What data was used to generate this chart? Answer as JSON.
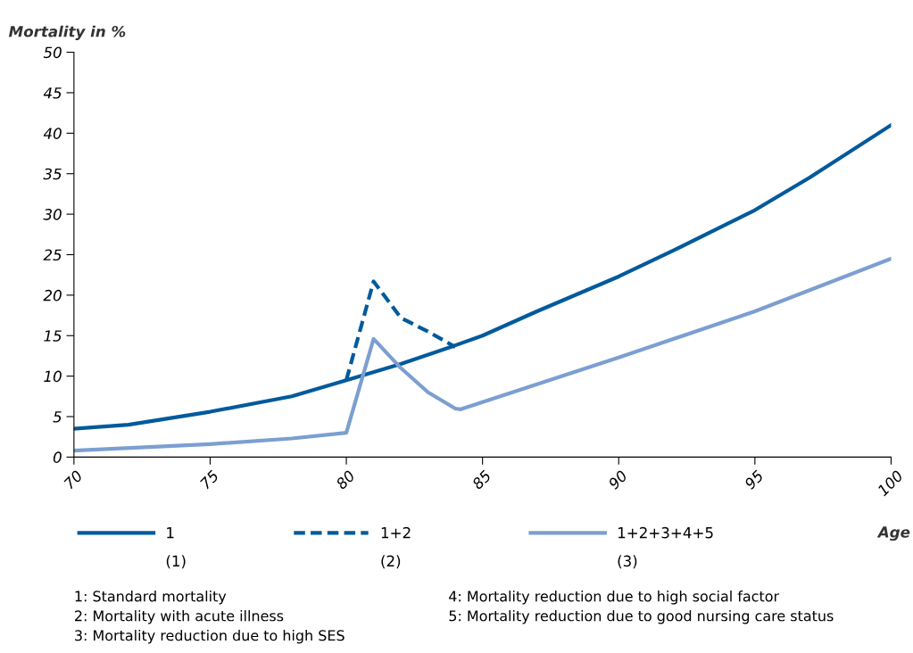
{
  "chart_data": {
    "type": "line",
    "ylabel": "Mortality in %",
    "xlabel": "Age",
    "xlim": [
      70,
      100
    ],
    "xticks": [
      70,
      75,
      80,
      85,
      90,
      95,
      100
    ],
    "ylim": [
      0,
      50
    ],
    "yticks": [
      0,
      5,
      10,
      15,
      20,
      25,
      30,
      35,
      40,
      45,
      50
    ],
    "grid": false,
    "legend": "bottom",
    "marker": "none",
    "series": [
      {
        "name": "1",
        "color": "#005a9c",
        "line_style": "solid",
        "x": [
          70,
          72,
          75,
          78,
          80,
          82,
          84,
          85,
          87,
          90,
          92,
          95,
          97,
          100
        ],
        "values": [
          3.5,
          4.0,
          5.6,
          7.5,
          9.5,
          11.5,
          13.8,
          15.0,
          18.0,
          22.3,
          25.5,
          30.5,
          34.5,
          41.0
        ]
      },
      {
        "name": "1+2",
        "color": "#005a9c",
        "line_style": "dashed",
        "x": [
          80,
          81,
          82,
          83,
          84
        ],
        "values": [
          9.5,
          21.7,
          17.2,
          15.5,
          13.6
        ]
      },
      {
        "name": "1+2+3+4+5",
        "color": "#7b9fd0",
        "line_style": "solid",
        "x": [
          70,
          75,
          78,
          80,
          81,
          82,
          83,
          84,
          84.2,
          85,
          90,
          95,
          100
        ],
        "values": [
          0.8,
          1.6,
          2.3,
          3.0,
          14.6,
          11.0,
          8.0,
          6.0,
          5.9,
          6.8,
          12.3,
          18.0,
          24.5
        ]
      }
    ],
    "annotations": [
      "(1)",
      "(2)",
      "(3)",
      "1: Standard mortality",
      "2: Mortality with acute illness",
      "3: Mortality reduction due to high SES",
      "4: Mortality reduction due to high social factor",
      "5: Mortality reduction due to good nursing care status"
    ]
  }
}
